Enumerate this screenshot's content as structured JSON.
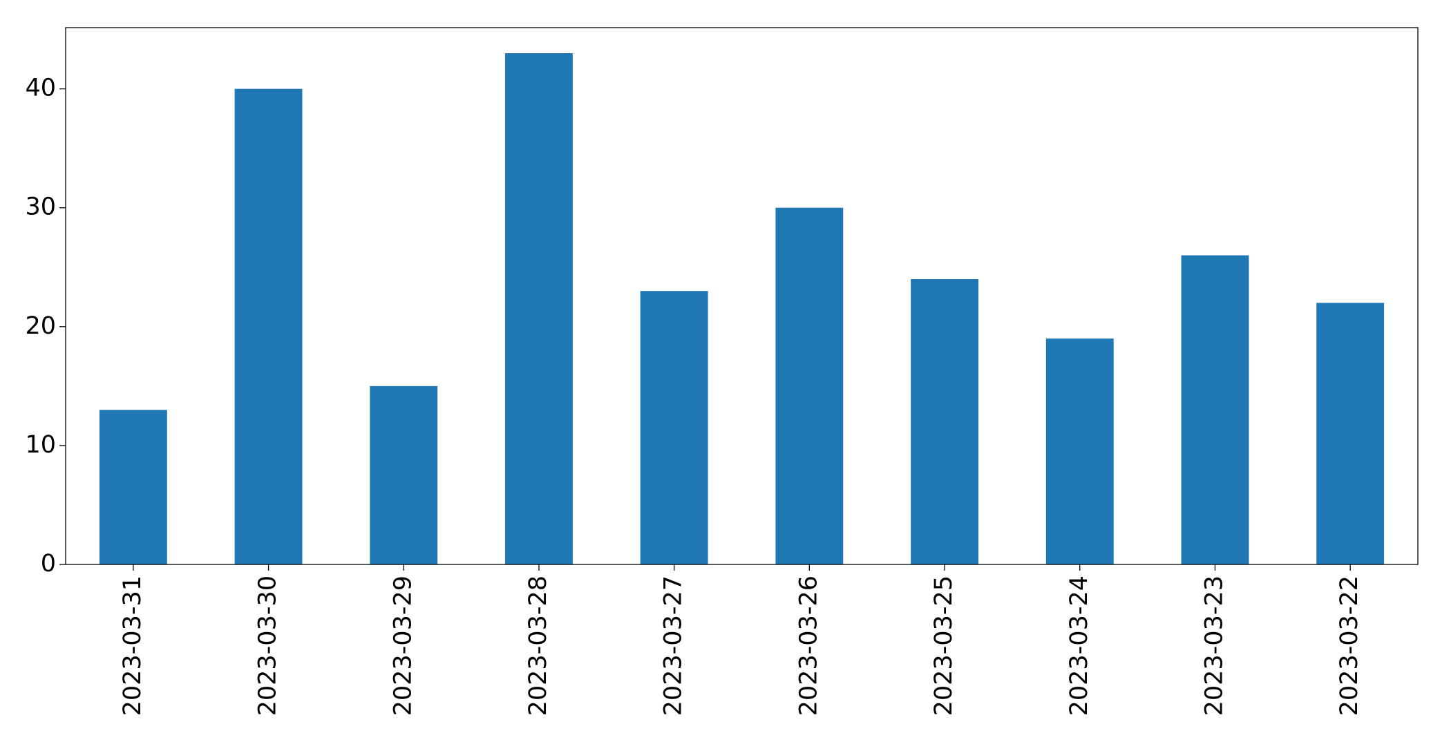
{
  "chart_data": {
    "type": "bar",
    "categories": [
      "2023-03-31",
      "2023-03-30",
      "2023-03-29",
      "2023-03-28",
      "2023-03-27",
      "2023-03-26",
      "2023-03-25",
      "2023-03-24",
      "2023-03-23",
      "2023-03-22"
    ],
    "values": [
      13,
      40,
      15,
      43,
      23,
      30,
      24,
      19,
      26,
      22
    ],
    "color": "#1f77b4",
    "ylim": [
      0,
      45.15
    ],
    "yticks": [
      0,
      10,
      20,
      30,
      40
    ],
    "grid": false
  }
}
